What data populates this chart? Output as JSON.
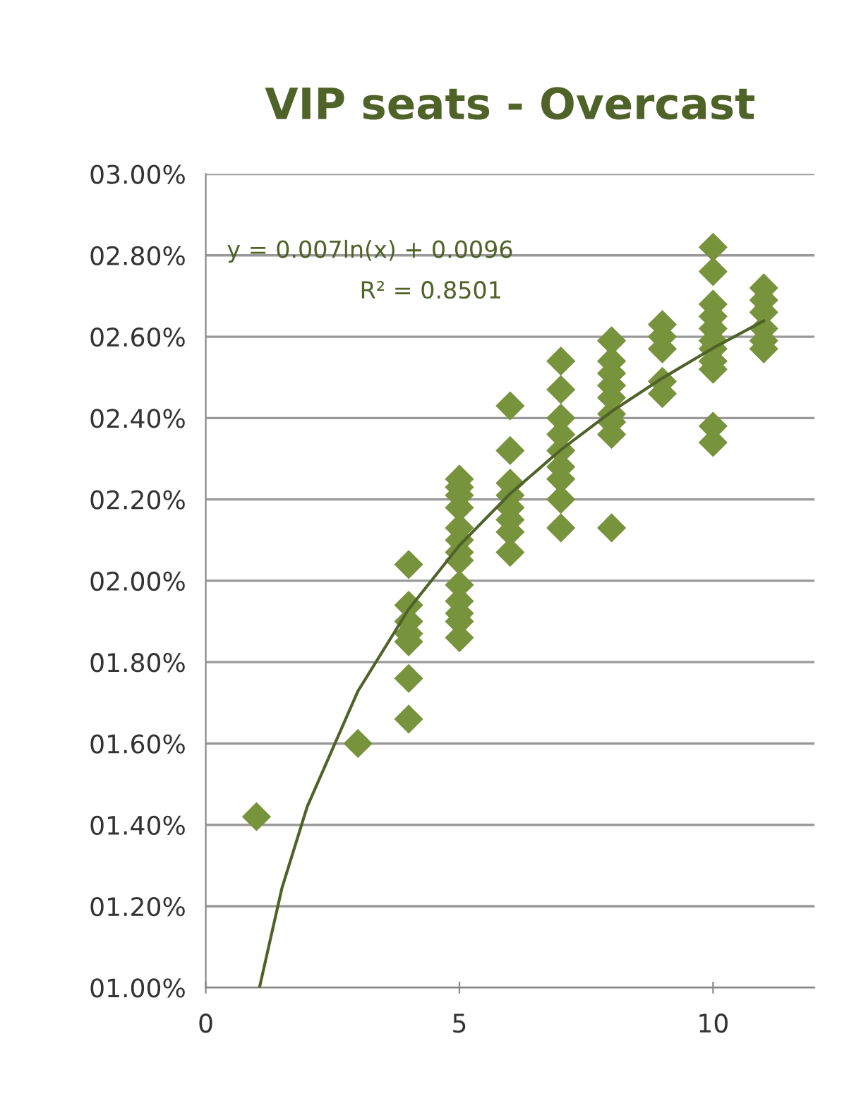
{
  "chart_data": {
    "type": "scatter",
    "title": "VIP seats - Overcast",
    "xlim": [
      0,
      12
    ],
    "xticks": [
      0,
      5,
      10
    ],
    "ylim": [
      1.0,
      3.0
    ],
    "yticks": [
      {
        "value": 1.0,
        "label": "01.00%"
      },
      {
        "value": 1.2,
        "label": "01.20%"
      },
      {
        "value": 1.4,
        "label": "01.40%"
      },
      {
        "value": 1.6,
        "label": "01.60%"
      },
      {
        "value": 1.8,
        "label": "01.80%"
      },
      {
        "value": 2.0,
        "label": "02.00%"
      },
      {
        "value": 2.2,
        "label": "02.20%"
      },
      {
        "value": 2.4,
        "label": "02.40%"
      },
      {
        "value": 2.6,
        "label": "02.60%"
      },
      {
        "value": 2.8,
        "label": "02.80%"
      },
      {
        "value": 3.0,
        "label": "03.00%"
      }
    ],
    "grid": "y",
    "marker": "diamond",
    "annotations": [
      "y = 0.007ln(x) + 0.0096",
      "R² = 0.8501"
    ],
    "series": [
      {
        "color": "#77933c",
        "x": [
          1,
          3,
          4,
          4,
          4,
          4,
          4,
          4,
          4,
          5,
          5,
          5,
          5,
          5,
          5,
          5,
          5,
          5,
          5,
          5,
          5,
          5,
          6,
          6,
          6,
          6,
          6,
          6,
          6,
          6,
          7,
          7,
          7,
          7,
          7,
          7,
          7,
          7,
          7,
          8,
          8,
          8,
          8,
          8,
          8,
          8,
          8,
          8,
          9,
          9,
          9,
          9,
          9,
          10,
          10,
          10,
          10,
          10,
          10,
          10,
          10,
          10,
          10,
          10,
          11,
          11,
          11,
          11,
          11,
          11
        ],
        "values": [
          1.42,
          1.6,
          2.04,
          1.94,
          1.9,
          1.87,
          1.85,
          1.76,
          1.66,
          2.25,
          2.23,
          2.21,
          2.18,
          2.13,
          2.1,
          2.07,
          2.05,
          1.99,
          1.95,
          1.92,
          1.9,
          1.86,
          2.43,
          2.32,
          2.24,
          2.21,
          2.18,
          2.15,
          2.12,
          2.07,
          2.54,
          2.47,
          2.4,
          2.36,
          2.32,
          2.28,
          2.25,
          2.2,
          2.13,
          2.59,
          2.54,
          2.51,
          2.48,
          2.45,
          2.41,
          2.39,
          2.36,
          2.13,
          2.63,
          2.6,
          2.57,
          2.49,
          2.46,
          2.82,
          2.76,
          2.68,
          2.65,
          2.62,
          2.59,
          2.57,
          2.54,
          2.52,
          2.38,
          2.34,
          2.72,
          2.69,
          2.66,
          2.62,
          2.59,
          2.57
        ]
      },
      {
        "type": "line",
        "color": "#4f6228",
        "line_style": "solid",
        "marker": "none",
        "x": [
          1.06,
          1.5,
          2,
          3,
          4,
          5,
          6,
          7,
          8,
          9,
          10,
          11
        ],
        "values": [
          1.001,
          1.244,
          1.445,
          1.729,
          1.93,
          2.087,
          2.214,
          2.322,
          2.416,
          2.498,
          2.572,
          2.639
        ]
      }
    ]
  }
}
